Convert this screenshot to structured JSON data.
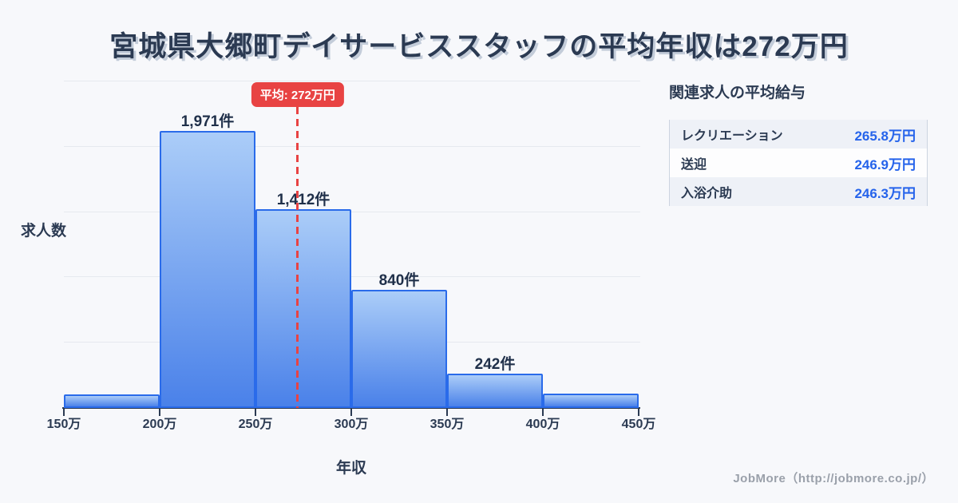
{
  "page": {
    "title": "宮城県大郷町デイサービススタッフの平均年収は272万円",
    "footer": "JobMore（http://jobmore.co.jp/）"
  },
  "chart_data": {
    "type": "bar",
    "subtype": "histogram",
    "title": "宮城県大郷町デイサービススタッフの平均年収は272万円",
    "xlabel": "年収",
    "ylabel": "求人数",
    "x_unit": "万円",
    "x_ticks": [
      "150万",
      "200万",
      "250万",
      "300万",
      "350万",
      "400万",
      "450万"
    ],
    "x_range": [
      150,
      450
    ],
    "bins": [
      {
        "range": [
          150,
          200
        ],
        "value": 95,
        "label": ""
      },
      {
        "range": [
          200,
          250
        ],
        "value": 1971,
        "label": "1,971件"
      },
      {
        "range": [
          250,
          300
        ],
        "value": 1412,
        "label": "1,412件"
      },
      {
        "range": [
          300,
          350
        ],
        "value": 840,
        "label": "840件"
      },
      {
        "range": [
          350,
          400
        ],
        "value": 242,
        "label": "242件"
      },
      {
        "range": [
          400,
          450
        ],
        "value": 100,
        "label": ""
      }
    ],
    "average": {
      "value": 272,
      "label": "平均: 272万円"
    },
    "ylim": [
      0,
      2320
    ],
    "gridlines": 5,
    "grid": "horizontal",
    "legend": "none"
  },
  "side_panel": {
    "title": "関連求人の平均給与",
    "rows": [
      {
        "label": "レクリエーション",
        "value": "265.8万円"
      },
      {
        "label": "送迎",
        "value": "246.9万円"
      },
      {
        "label": "入浴介助",
        "value": "246.3万円"
      }
    ]
  },
  "colors": {
    "background": "#f7f8fb",
    "dark_text": "#2b3a52",
    "bar_fill_top": "#abcdf8",
    "bar_fill_bottom": "#4a81e9",
    "bar_border": "#2a6bea",
    "average_red": "#e84343",
    "value_blue": "#2563eb",
    "gridline": "#e6e9ef",
    "footer_text": "#9aa0aa"
  }
}
